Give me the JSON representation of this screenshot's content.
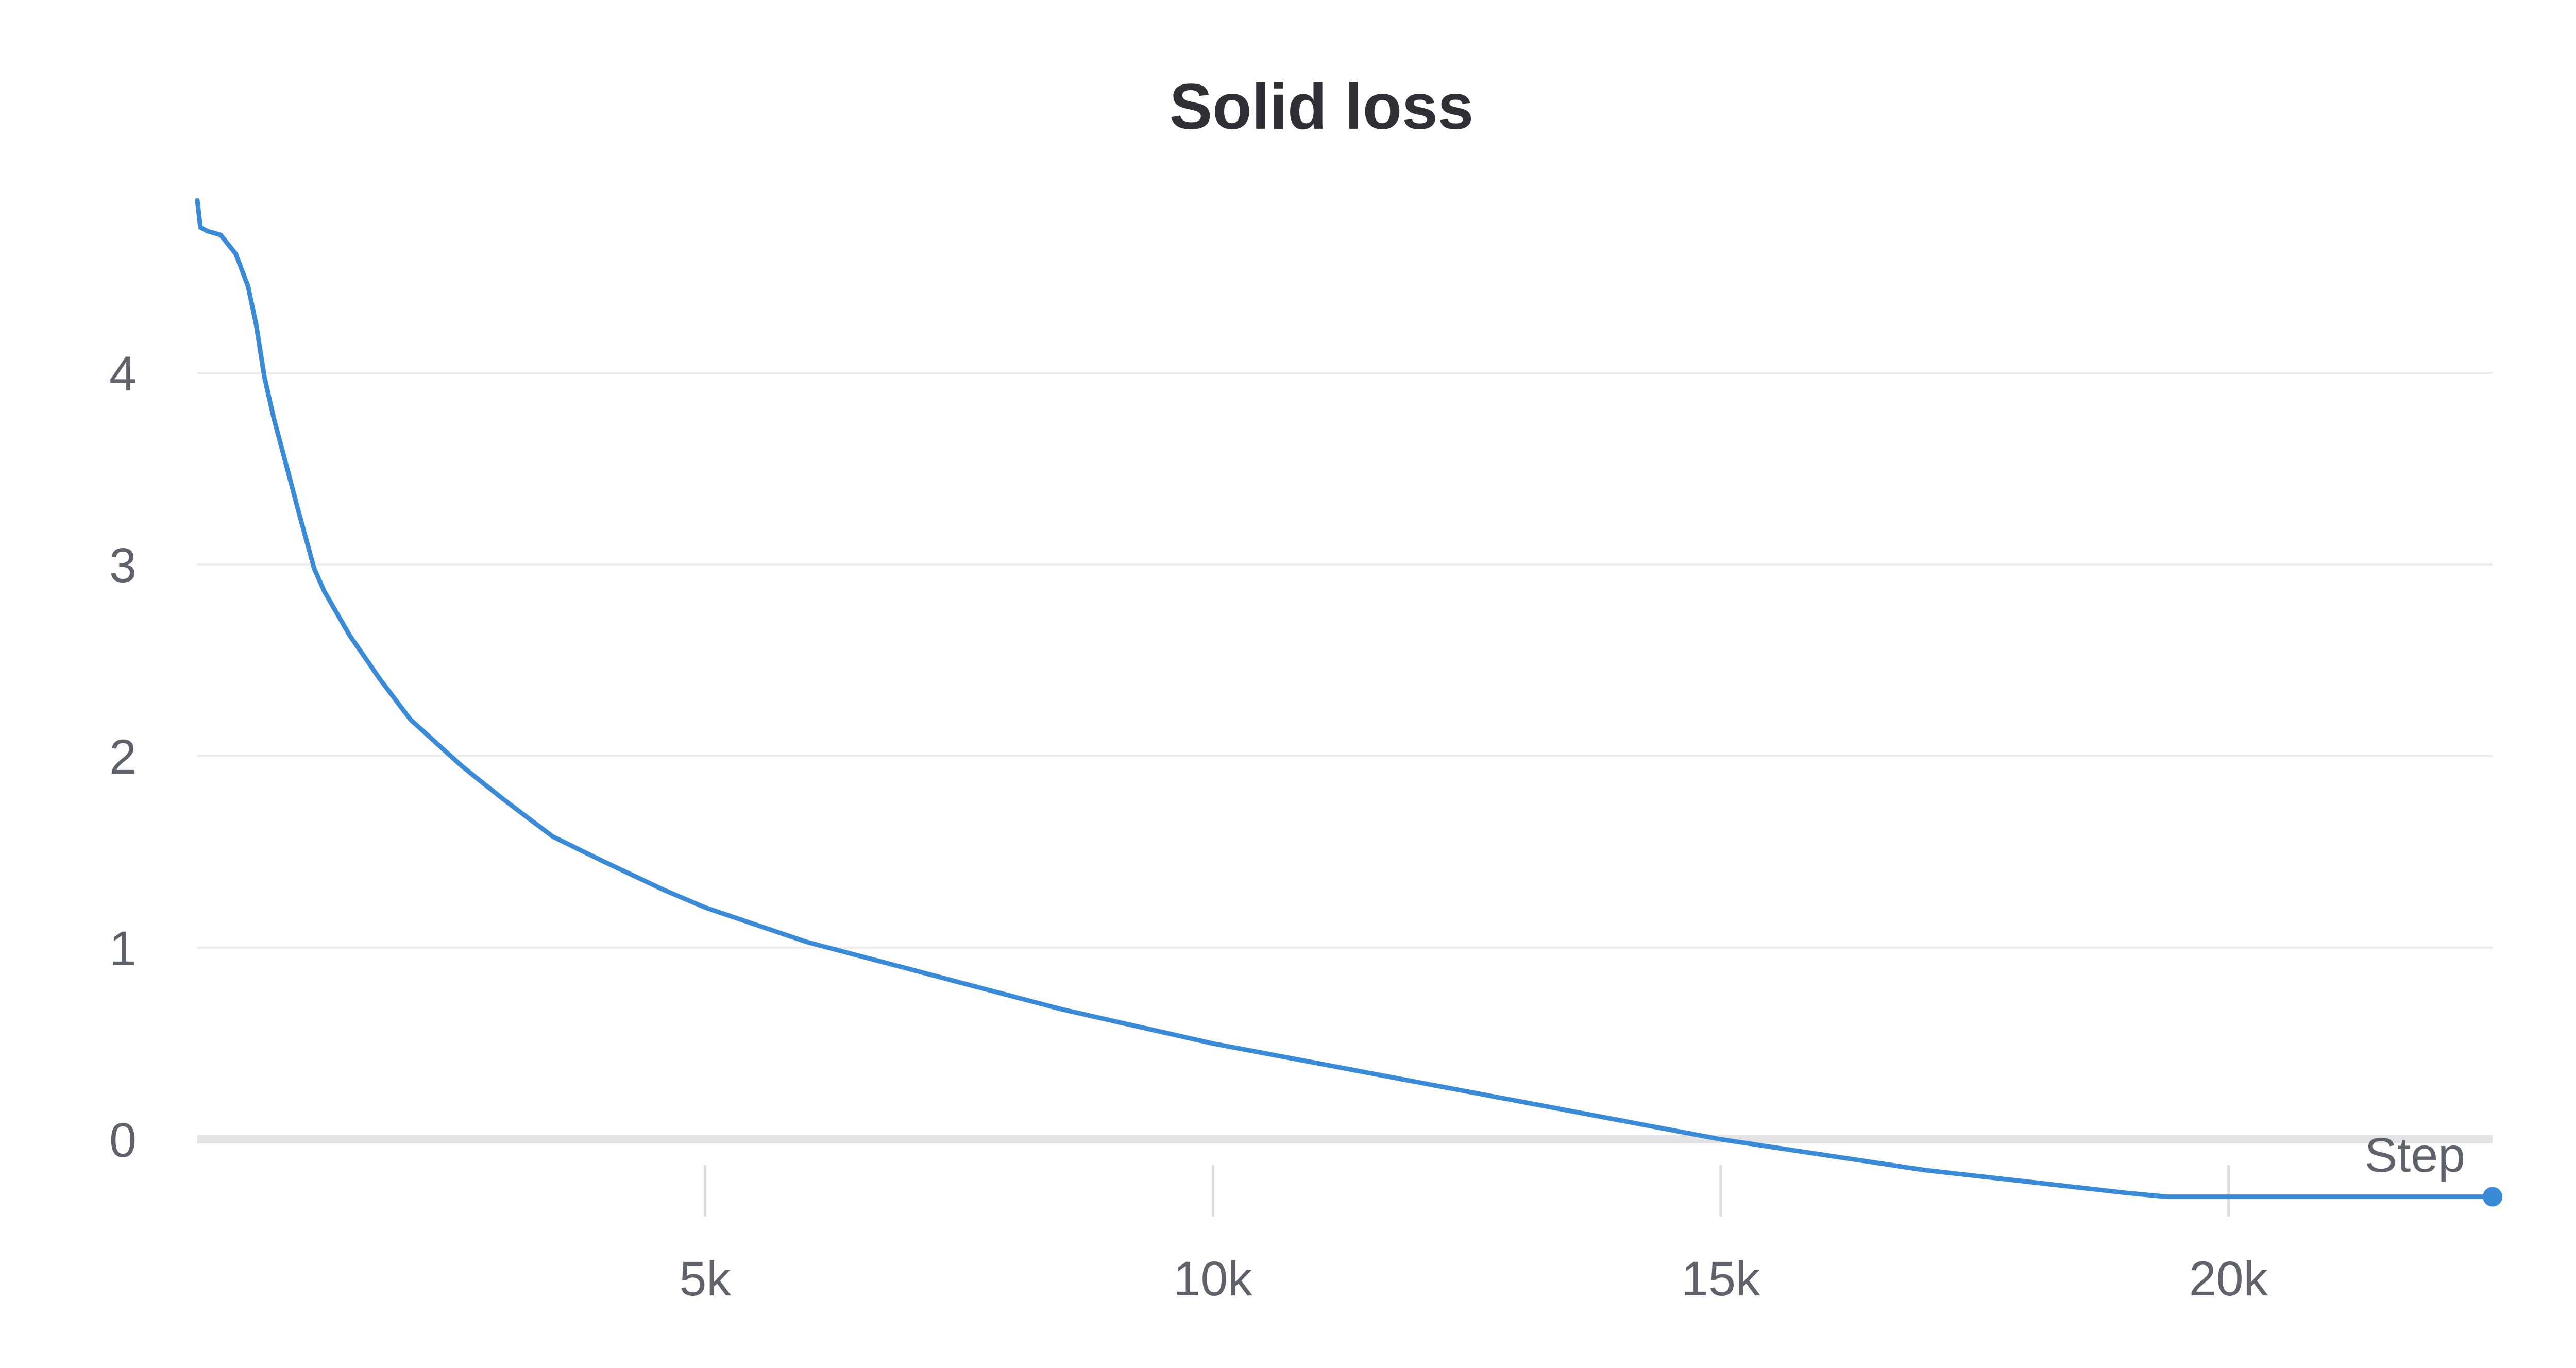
{
  "chart_data": {
    "type": "line",
    "title": "Solid loss",
    "xlabel": "Step",
    "ylabel": "",
    "xlim": [
      0,
      22600
    ],
    "ylim": [
      -0.5,
      4.9
    ],
    "x_ticks": [
      5000,
      10000,
      15000,
      20000
    ],
    "x_tick_labels": [
      "5k",
      "10k",
      "15k",
      "20k"
    ],
    "y_ticks": [
      0,
      1,
      2,
      3,
      4
    ],
    "y_tick_labels": [
      "0",
      "1",
      "2",
      "3",
      "4"
    ],
    "grid": true,
    "legend": "none",
    "series": [
      {
        "color": "#3a8ad6",
        "x": [
          0,
          30,
          100,
          230,
          380,
          500,
          580,
          660,
          750,
          870,
          1000,
          1150,
          1250,
          1500,
          1800,
          2100,
          2600,
          3000,
          3500,
          4000,
          4600,
          5000,
          5500,
          6000,
          6500,
          7000,
          7500,
          8000,
          8500,
          9000,
          9500,
          10000,
          10500,
          11000,
          11500,
          12000,
          12500,
          13000,
          13500,
          14000,
          14500,
          15000,
          15500,
          16000,
          16500,
          17000,
          17500,
          18000,
          18500,
          19000,
          19400,
          19500,
          20500,
          21500,
          22600
        ],
        "values": [
          4.9,
          4.76,
          4.74,
          4.72,
          4.62,
          4.45,
          4.25,
          3.98,
          3.77,
          3.53,
          3.27,
          2.98,
          2.86,
          2.63,
          2.4,
          2.19,
          1.95,
          1.78,
          1.58,
          1.45,
          1.3,
          1.21,
          1.12,
          1.03,
          0.96,
          0.89,
          0.82,
          0.75,
          0.68,
          0.62,
          0.56,
          0.5,
          0.45,
          0.4,
          0.35,
          0.3,
          0.25,
          0.2,
          0.15,
          0.1,
          0.05,
          0.0,
          -0.04,
          -0.08,
          -0.12,
          -0.16,
          -0.19,
          -0.22,
          -0.25,
          -0.28,
          -0.3,
          -0.3,
          -0.3,
          -0.3,
          -0.3
        ]
      }
    ]
  }
}
